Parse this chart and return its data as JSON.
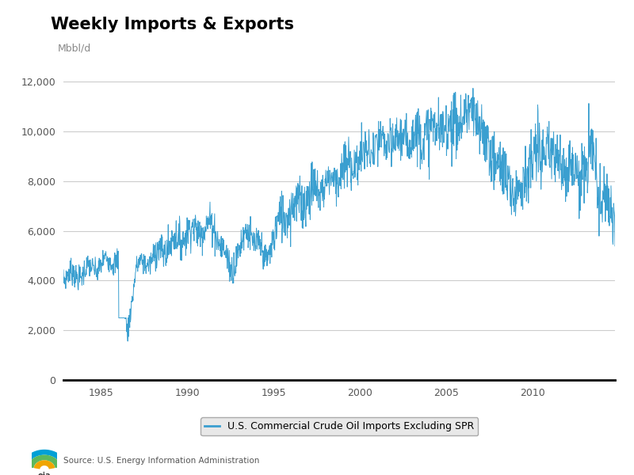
{
  "title": "Weekly Imports & Exports",
  "ylabel": "Mbbl/d",
  "line_color": "#3A9FD0",
  "line_label": "U.S. Commercial Crude Oil Imports Excluding SPR",
  "source": "Source: U.S. Energy Information Administration",
  "ylim": [
    0,
    13000
  ],
  "yticks": [
    0,
    2000,
    4000,
    6000,
    8000,
    10000,
    12000
  ],
  "x_start_year": 1982.8,
  "x_end_year": 2014.8,
  "xtick_years": [
    1985,
    1990,
    1995,
    2000,
    2005,
    2010
  ],
  "background_color": "#FFFFFF",
  "grid_color": "#CCCCCC",
  "title_fontsize": 15,
  "label_fontsize": 9,
  "tick_fontsize": 9,
  "legend_box_color": "#E8E8E8",
  "legend_border_color": "#AAAAAA"
}
